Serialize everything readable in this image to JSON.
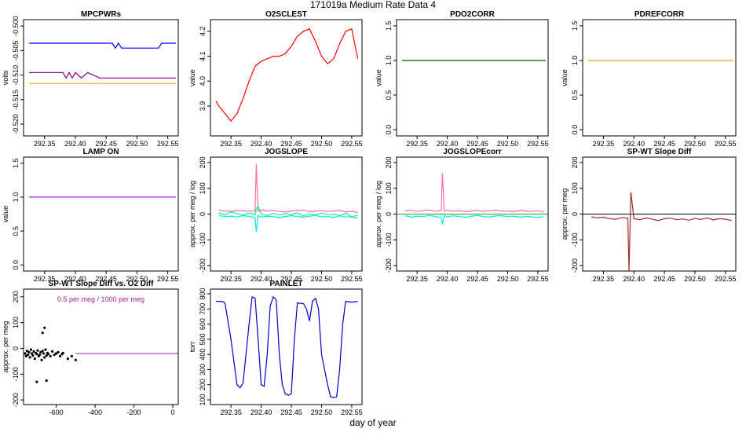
{
  "title": "171019a   Medium Rate Data 4",
  "xlabel": "day of year",
  "chart_data": [
    {
      "type": "line",
      "title": "MPCPWRs",
      "ylabel": "volts",
      "xlim": [
        292.316,
        292.567
      ],
      "ylim": [
        -0.5224,
        -0.4987
      ],
      "xticks": [
        292.35,
        {
          "value": 292.4,
          "label": "292.40"
        },
        292.45,
        {
          "value": 292.5,
          "label": "292.50"
        },
        292.55
      ],
      "yticks": [
        {
          "value": -0.5,
          "label": "-0.500"
        },
        -0.505,
        {
          "value": -0.51,
          "label": "-0.510"
        },
        -0.515,
        {
          "value": -0.52,
          "label": "-0.520"
        }
      ],
      "x": [
        292.325,
        292.38,
        292.385,
        292.39,
        292.395,
        292.4,
        292.41,
        292.42,
        292.44,
        292.46,
        292.465,
        292.47,
        292.475,
        292.53,
        292.535,
        292.54,
        292.545,
        292.563
      ],
      "series": [
        {
          "color": "#0000ff",
          "values": [
            -0.5035,
            -0.5035,
            -0.5035,
            -0.5035,
            -0.5035,
            -0.5035,
            -0.5035,
            -0.5035,
            -0.5035,
            -0.5035,
            -0.5045,
            -0.5035,
            -0.5045,
            -0.5045,
            -0.5045,
            -0.5035,
            -0.5035,
            -0.5035
          ]
        },
        {
          "color": "#8b008b",
          "values": [
            -0.5095,
            -0.5095,
            -0.5106,
            -0.5095,
            -0.5106,
            -0.5095,
            -0.5106,
            -0.5095,
            -0.5106,
            -0.5106,
            -0.5106,
            -0.5106,
            -0.5106,
            -0.5106,
            -0.5106,
            -0.5106,
            -0.5106,
            -0.5106
          ]
        },
        {
          "color": "#ffa500",
          "values": [
            -0.5117,
            -0.5117,
            -0.5117,
            -0.5117,
            -0.5117,
            -0.5117,
            -0.5117,
            -0.5117,
            -0.5117,
            -0.5117,
            -0.5117,
            -0.5117,
            -0.5117,
            -0.5117,
            -0.5117,
            -0.5117,
            -0.5117,
            -0.5117
          ]
        }
      ]
    },
    {
      "type": "line",
      "title": "O2SCLEST",
      "ylabel": "value",
      "xlim": [
        292.316,
        292.567
      ],
      "ylim": [
        3.78,
        4.247
      ],
      "xticks": [
        292.35,
        {
          "value": 292.4,
          "label": "292.40"
        },
        292.45,
        {
          "value": 292.5,
          "label": "292.50"
        },
        292.55
      ],
      "yticks": [
        3.9,
        {
          "value": 4,
          "label": "4.0"
        },
        4.1,
        4.2
      ],
      "x": [
        292.325,
        292.33,
        292.34,
        292.35,
        292.36,
        292.37,
        292.38,
        292.39,
        292.4,
        292.41,
        292.42,
        292.43,
        292.44,
        292.45,
        292.46,
        292.47,
        292.48,
        292.49,
        292.5,
        292.51,
        292.52,
        292.53,
        292.54,
        292.55,
        292.56
      ],
      "series": [
        {
          "color": "#ff0000",
          "values": [
            3.92,
            3.9,
            3.87,
            3.84,
            3.87,
            3.93,
            4.0,
            4.06,
            4.08,
            4.09,
            4.1,
            4.1,
            4.11,
            4.14,
            4.18,
            4.2,
            4.21,
            4.16,
            4.1,
            4.07,
            4.09,
            4.15,
            4.2,
            4.21,
            4.09
          ]
        }
      ]
    },
    {
      "type": "line",
      "title": "PDO2CORR",
      "ylabel": "value",
      "xlim": [
        292.316,
        292.567
      ],
      "ylim": [
        -0.09,
        1.59
      ],
      "xticks": [
        292.35,
        {
          "value": 292.4,
          "label": "292.40"
        },
        292.45,
        {
          "value": 292.5,
          "label": "292.50"
        },
        292.55
      ],
      "yticks": [
        {
          "value": 0,
          "label": "0.0"
        },
        0.5,
        {
          "value": 1,
          "label": "1.0"
        },
        1.5
      ],
      "x": [
        292.325,
        292.563
      ],
      "series": [
        {
          "color": "#006400",
          "values": [
            1,
            1
          ]
        }
      ]
    },
    {
      "type": "line",
      "title": "PDREFCORR",
      "ylabel": "value",
      "xlim": [
        292.316,
        292.567
      ],
      "ylim": [
        -0.09,
        1.59
      ],
      "xticks": [
        292.35,
        {
          "value": 292.4,
          "label": "292.40"
        },
        292.45,
        {
          "value": 292.5,
          "label": "292.50"
        },
        292.55
      ],
      "yticks": [
        {
          "value": 0,
          "label": "0.0"
        },
        0.5,
        {
          "value": 1,
          "label": "1.0"
        },
        1.5
      ],
      "x": [
        292.325,
        292.563
      ],
      "series": [
        {
          "color": "#ffa500",
          "values": [
            1,
            1
          ]
        }
      ]
    },
    {
      "type": "line",
      "title": "LAMP ON",
      "ylabel": "value",
      "xlim": [
        292.316,
        292.567
      ],
      "ylim": [
        -0.09,
        1.59
      ],
      "xticks": [
        292.35,
        {
          "value": 292.4,
          "label": "292.40"
        },
        292.45,
        {
          "value": 292.5,
          "label": "292.50"
        },
        292.55
      ],
      "yticks": [
        {
          "value": 0,
          "label": "0.0"
        },
        0.5,
        {
          "value": 1,
          "label": "1.0"
        },
        1.5
      ],
      "x": [
        292.325,
        292.563
      ],
      "series": [
        {
          "color": "#a020f0",
          "values": [
            1,
            1
          ]
        }
      ]
    },
    {
      "type": "line",
      "title": "JOGSLOPE",
      "ylabel": "approx. per meg / log",
      "xlim": [
        292.316,
        292.567
      ],
      "ylim": [
        -221,
        221
      ],
      "xticks": [
        292.35,
        {
          "value": 292.4,
          "label": "292.40"
        },
        292.45,
        {
          "value": 292.5,
          "label": "292.50"
        },
        292.55
      ],
      "yticks": [
        -200,
        -100,
        0,
        100,
        200
      ],
      "x": [
        292.33,
        292.34,
        292.35,
        292.36,
        292.37,
        292.38,
        292.39,
        292.392,
        292.395,
        292.4,
        292.41,
        292.42,
        292.43,
        292.44,
        292.45,
        292.46,
        292.47,
        292.48,
        292.49,
        292.5,
        292.51,
        292.52,
        292.53,
        292.54,
        292.55,
        292.56
      ],
      "series": [
        {
          "color": "#ff69b4",
          "values": [
            15,
            12,
            10,
            14,
            13,
            11,
            12,
            195,
            10,
            16,
            12,
            14,
            10,
            8,
            12,
            14,
            15,
            9,
            11,
            13,
            10,
            12,
            14,
            8,
            11,
            6
          ]
        },
        {
          "color": "#00ff7f",
          "values": [
            5,
            -3,
            8,
            2,
            -5,
            4,
            -2,
            20,
            30,
            0,
            -6,
            3,
            -4,
            2,
            -2,
            5,
            -8,
            1,
            -3,
            4,
            -2,
            0,
            -6,
            3,
            -10,
            -5
          ]
        },
        {
          "color": "#00e5ee",
          "values": [
            -5,
            -10,
            -8,
            -12,
            -6,
            -9,
            -15,
            -70,
            -5,
            -12,
            -8,
            -10,
            -14,
            -9,
            -6,
            -10,
            -12,
            -8,
            -5,
            -11,
            -9,
            -13,
            -7,
            -10,
            -12,
            -15
          ]
        }
      ]
    },
    {
      "type": "line",
      "title": "JOGSLOPEcorr",
      "ylabel": "approx. per meg / log",
      "xlim": [
        292.316,
        292.567
      ],
      "ylim": [
        -221,
        221
      ],
      "xticks": [
        292.35,
        {
          "value": 292.4,
          "label": "292.40"
        },
        292.45,
        {
          "value": 292.5,
          "label": "292.50"
        },
        292.55
      ],
      "yticks": [
        -200,
        -100,
        0,
        100,
        200
      ],
      "hline": 0,
      "hline_color": "#00c000",
      "x": [
        292.33,
        292.34,
        292.35,
        292.36,
        292.37,
        292.38,
        292.39,
        292.392,
        292.395,
        292.4,
        292.41,
        292.42,
        292.43,
        292.44,
        292.45,
        292.46,
        292.47,
        292.48,
        292.49,
        292.5,
        292.51,
        292.52,
        292.53,
        292.54,
        292.55,
        292.56
      ],
      "series": [
        {
          "color": "#ff69b4",
          "values": [
            12,
            15,
            10,
            13,
            16,
            11,
            14,
            160,
            12,
            15,
            11,
            13,
            9,
            12,
            14,
            10,
            13,
            15,
            11,
            12,
            9,
            14,
            12,
            10,
            13,
            8
          ]
        },
        {
          "color": "#00e5ee",
          "values": [
            -6,
            -12,
            -8,
            -10,
            -5,
            -9,
            -14,
            -40,
            -6,
            -11,
            -7,
            -9,
            -13,
            -8,
            -5,
            -10,
            -11,
            -7,
            -6,
            -10,
            -8,
            -12,
            -9,
            -11,
            -13,
            -10
          ]
        }
      ]
    },
    {
      "type": "line",
      "title": "SP-WT Slope Diff",
      "ylabel": "approx. per meg",
      "xlim": [
        292.316,
        292.567
      ],
      "ylim": [
        -221,
        221
      ],
      "xticks": [
        292.35,
        {
          "value": 292.4,
          "label": "292.40"
        },
        292.45,
        {
          "value": 292.5,
          "label": "292.50"
        },
        292.55
      ],
      "yticks": [
        -200,
        -100,
        0,
        100,
        200
      ],
      "hline": 0,
      "hline_color": "#000000",
      "x": [
        292.33,
        292.34,
        292.35,
        292.36,
        292.37,
        292.38,
        292.39,
        292.392,
        292.395,
        292.4,
        292.41,
        292.42,
        292.43,
        292.44,
        292.45,
        292.46,
        292.47,
        292.48,
        292.49,
        292.5,
        292.51,
        292.52,
        292.53,
        292.54,
        292.55,
        292.56
      ],
      "series": [
        {
          "color": "#a52a2a",
          "values": [
            -10,
            -15,
            -12,
            -18,
            -20,
            -14,
            -16,
            -220,
            85,
            -18,
            -22,
            -15,
            -20,
            -25,
            -18,
            -16,
            -22,
            -19,
            -24,
            -17,
            -21,
            -15,
            -23,
            -18,
            -20,
            -25
          ]
        }
      ]
    },
    {
      "type": "scatter",
      "title": "SP-WT Slope Diff vs. O2 Diff",
      "ylabel": "approx. per meg",
      "annotation": "0.5 per meg / 1000 per meg",
      "annotation_color": "#a020a0",
      "xlim": [
        -768,
        28
      ],
      "ylim": [
        -218,
        230
      ],
      "xticks": [
        -600,
        -400,
        -200,
        0
      ],
      "yticks": [
        -200,
        -100,
        0,
        100,
        200
      ],
      "hline": -20,
      "hline_color": "#a020a0",
      "color": "#000000",
      "x": [
        -760,
        -755,
        -750,
        -745,
        -740,
        -735,
        -730,
        -725,
        -720,
        -715,
        -710,
        -705,
        -700,
        -695,
        -690,
        -685,
        -680,
        -675,
        -670,
        -665,
        -660,
        -655,
        -650,
        -645,
        -640,
        -630,
        -620,
        -610,
        -600,
        -590,
        -580,
        -570,
        -565,
        -700,
        -650,
        -660,
        -670,
        -540,
        -520,
        -500
      ],
      "values": [
        -20,
        -30,
        -10,
        -25,
        -15,
        -35,
        -5,
        -20,
        -28,
        -12,
        -40,
        -18,
        -22,
        -8,
        -30,
        -25,
        -15,
        -45,
        -10,
        -20,
        -35,
        -5,
        -28,
        -18,
        -22,
        -30,
        -12,
        -25,
        -20,
        -15,
        -30,
        -22,
        -18,
        -130,
        -125,
        80,
        60,
        -40,
        -30,
        -45
      ]
    },
    {
      "type": "line",
      "title": "PAINLET",
      "ylabel": "torr",
      "xlim": [
        292.316,
        292.567
      ],
      "ylim": [
        69,
        831
      ],
      "xticks": [
        292.35,
        {
          "value": 292.4,
          "label": "292.40"
        },
        292.45,
        {
          "value": 292.5,
          "label": "292.50"
        },
        292.55
      ],
      "yticks": [
        100,
        200,
        300,
        400,
        500,
        600,
        700,
        800
      ],
      "x": [
        292.325,
        292.335,
        292.34,
        292.35,
        292.36,
        292.365,
        292.37,
        292.38,
        292.385,
        292.39,
        292.395,
        292.4,
        292.405,
        292.41,
        292.415,
        292.42,
        292.425,
        292.43,
        292.435,
        292.44,
        292.445,
        292.45,
        292.455,
        292.46,
        292.47,
        292.475,
        292.48,
        292.485,
        292.49,
        292.495,
        292.5,
        292.51,
        292.515,
        292.52,
        292.525,
        292.53,
        292.535,
        292.54,
        292.55,
        292.56
      ],
      "series": [
        {
          "color": "#0000cd",
          "values": [
            750,
            750,
            740,
            500,
            200,
            180,
            210,
            600,
            780,
            770,
            500,
            200,
            190,
            400,
            720,
            780,
            760,
            400,
            200,
            140,
            130,
            140,
            500,
            740,
            735,
            700,
            620,
            750,
            770,
            700,
            400,
            200,
            120,
            115,
            120,
            300,
            600,
            750,
            745,
            750
          ]
        }
      ]
    }
  ]
}
